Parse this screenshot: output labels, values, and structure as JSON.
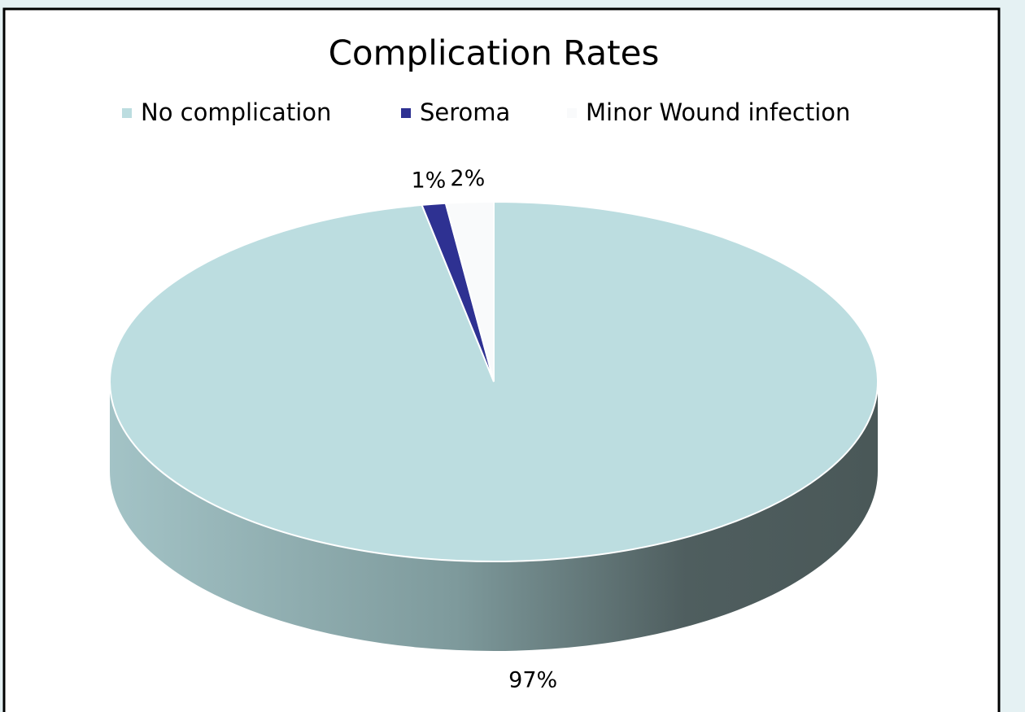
{
  "chart_data": {
    "type": "pie",
    "title": "Complication Rates",
    "categories": [
      "No complication",
      "Seroma",
      "Minor Wound infection"
    ],
    "values": [
      97,
      1,
      2
    ],
    "value_labels": [
      "97%",
      "1%",
      "2%"
    ],
    "colors": [
      "#bcdde0",
      "#2e3192",
      "#f9fafb"
    ],
    "legend": "top"
  }
}
